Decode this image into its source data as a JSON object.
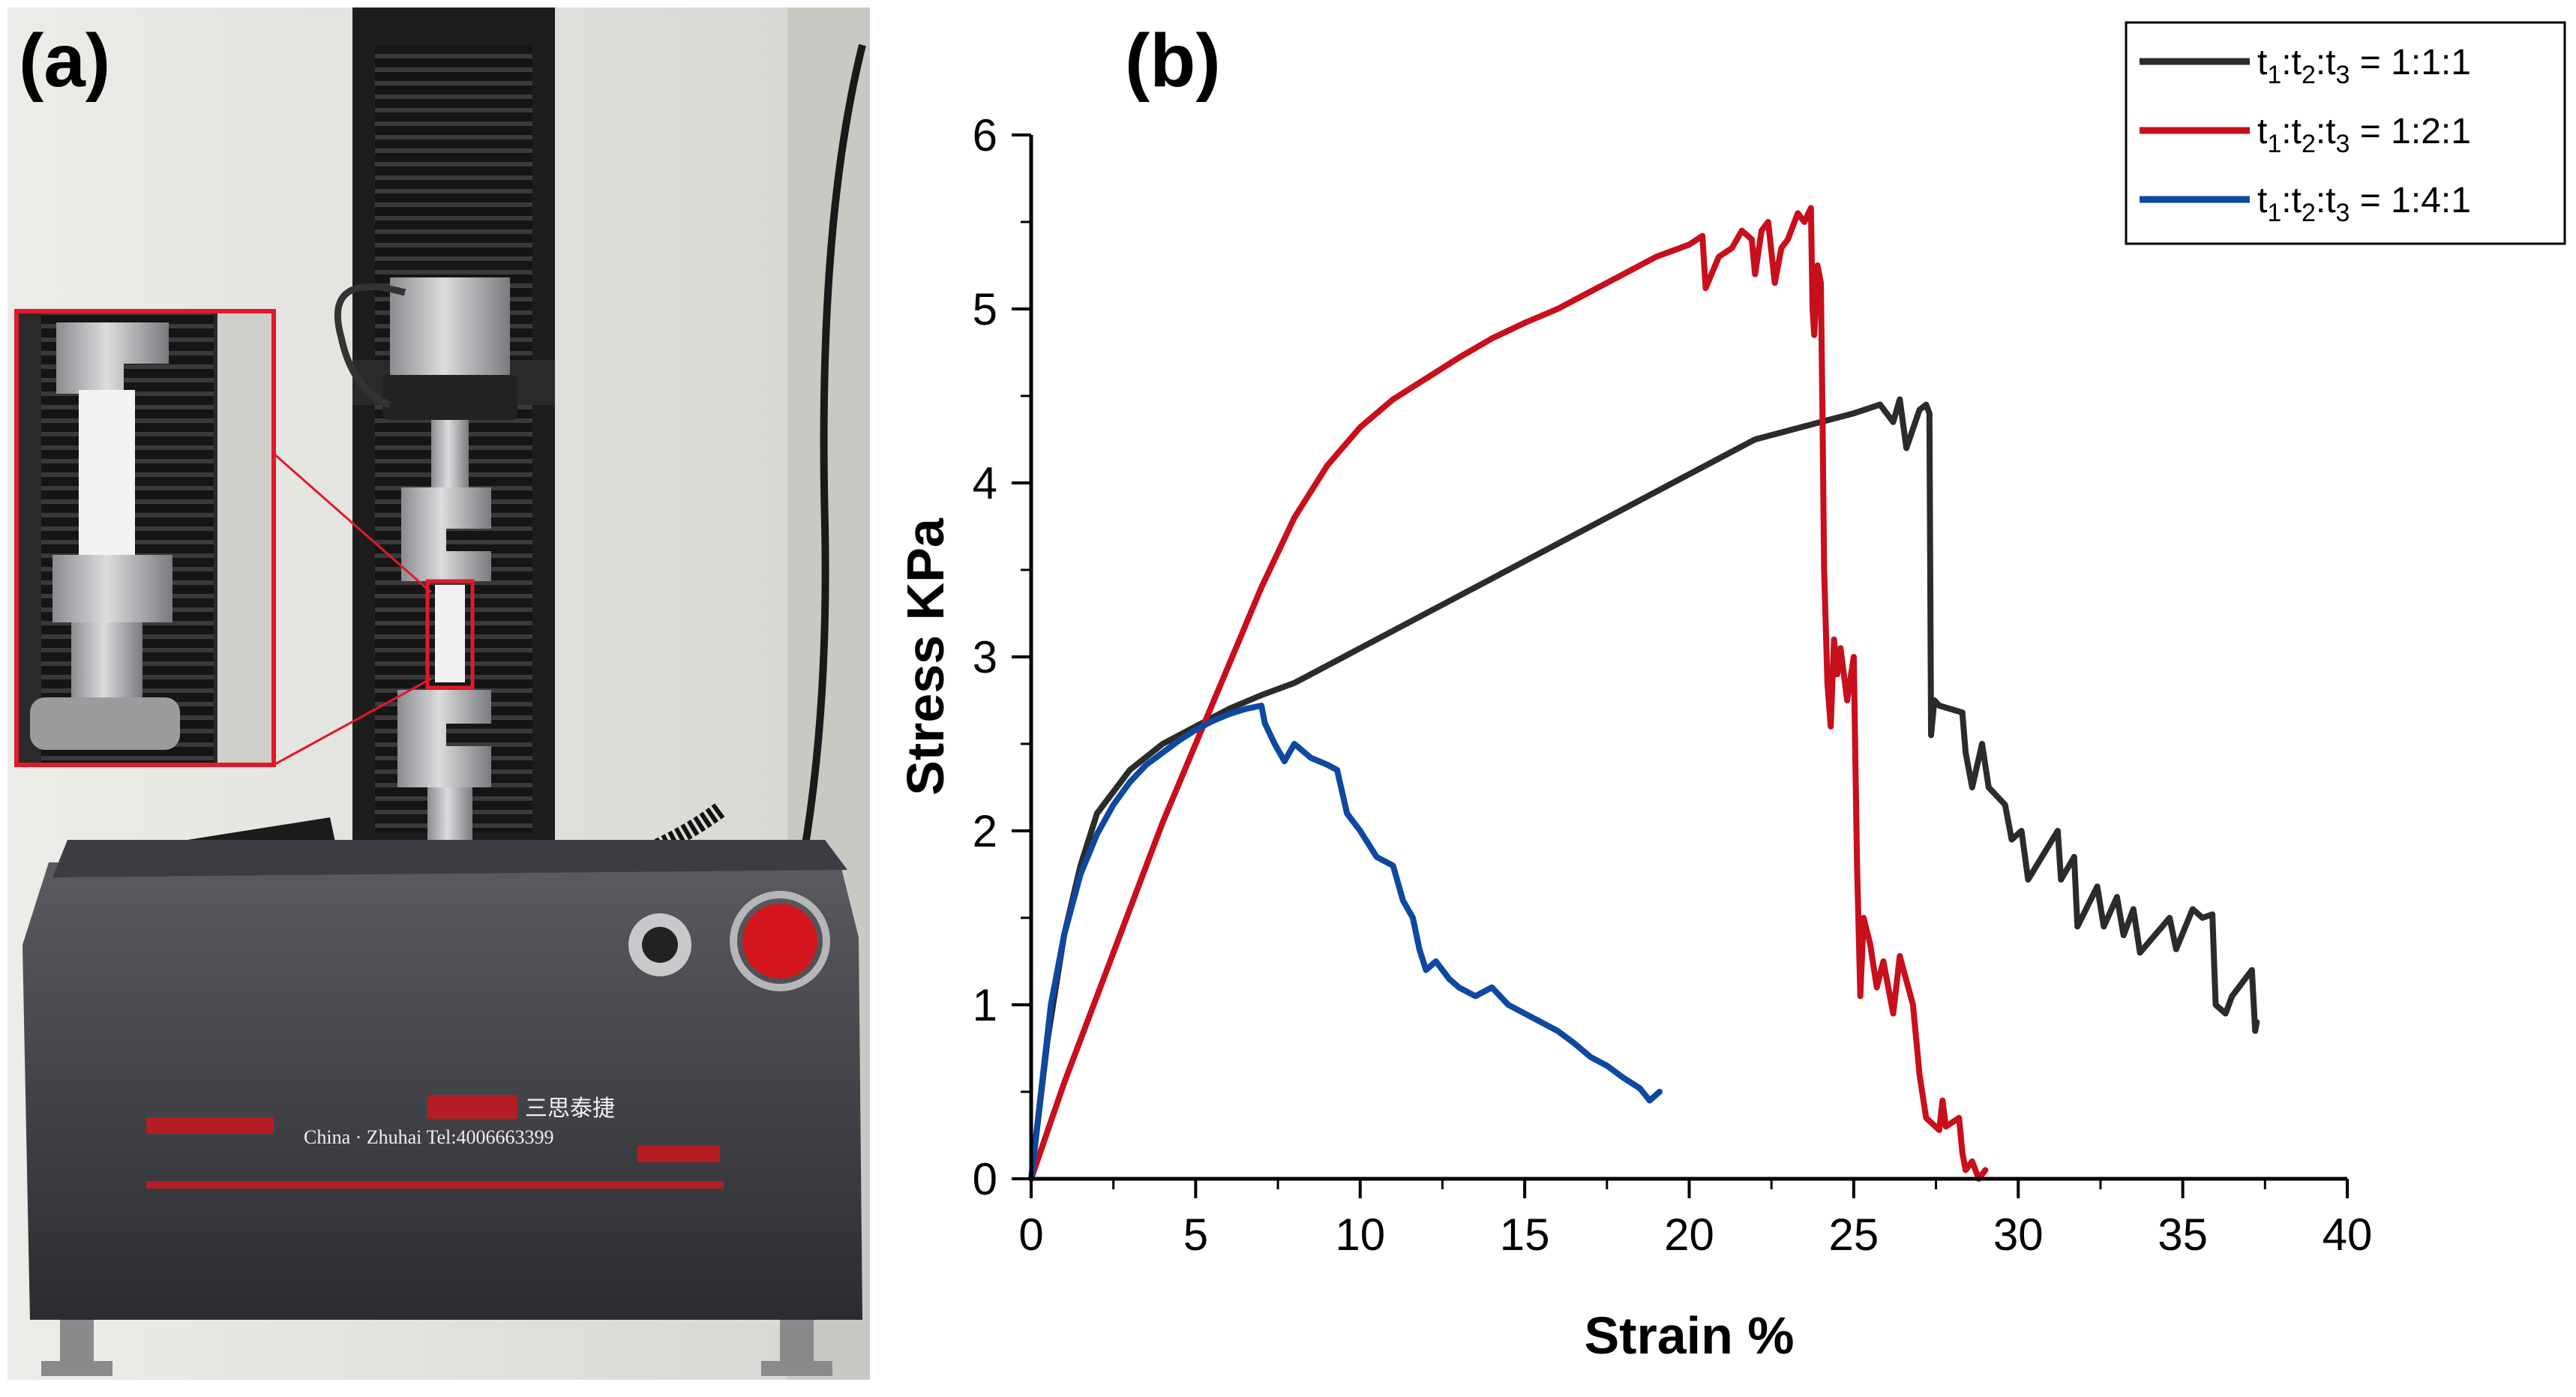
{
  "figure": {
    "panel_a_label": "(a)",
    "panel_b_label": "(b)",
    "machine": {
      "brand_text": "三思泰捷",
      "location_text": "China · Zhuhai Tel:4006663399"
    }
  },
  "colors": {
    "series_1": "#2b2b2b",
    "series_2": "#c80f1c",
    "series_3": "#0e48a0",
    "zoom_box": "#e0192b"
  },
  "chart_data": {
    "type": "line",
    "title": "",
    "xlabel": "Strain %",
    "ylabel": "Stress KPa",
    "xlim": [
      0,
      40
    ],
    "ylim": [
      0,
      6
    ],
    "xticks": [
      "0",
      "5",
      "10",
      "15",
      "20",
      "25",
      "30",
      "35",
      "40"
    ],
    "yticks": [
      "0",
      "1",
      "2",
      "3",
      "4",
      "5",
      "6"
    ],
    "legend_position": "top-right",
    "series": [
      {
        "name": "t1:t2:t3 = 1:1:1",
        "legend_parts": [
          "t",
          "1",
          ":t",
          "2",
          ":t",
          "3",
          " = 1:1:1"
        ],
        "color": "#2b2b2b",
        "x": [
          0,
          0.5,
          1,
          1.5,
          2,
          3,
          4,
          5,
          6,
          7,
          8,
          10,
          12,
          14,
          16,
          18,
          20,
          22,
          24,
          25,
          25.8,
          26.2,
          26.4,
          26.6,
          27,
          27.2,
          27.3,
          27.35,
          27.45,
          27.6,
          28.3,
          28.4,
          28.6,
          28.9,
          29.1,
          29.6,
          29.8,
          30.1,
          30.3,
          31.2,
          31.3,
          31.7,
          31.8,
          32.4,
          32.6,
          33.0,
          33.2,
          33.5,
          33.7,
          34.6,
          34.8,
          35.3,
          35.6,
          35.9,
          36.0,
          36.3,
          36.5,
          36.9,
          37.1,
          37.2,
          37.25
        ],
        "y": [
          0,
          0.8,
          1.4,
          1.8,
          2.1,
          2.35,
          2.5,
          2.6,
          2.7,
          2.78,
          2.85,
          3.05,
          3.25,
          3.45,
          3.65,
          3.85,
          4.05,
          4.25,
          4.35,
          4.4,
          4.45,
          4.35,
          4.48,
          4.2,
          4.42,
          4.45,
          4.4,
          2.55,
          2.75,
          2.72,
          2.68,
          2.45,
          2.25,
          2.5,
          2.25,
          2.15,
          1.95,
          2.0,
          1.72,
          2.0,
          1.72,
          1.85,
          1.45,
          1.68,
          1.45,
          1.62,
          1.4,
          1.55,
          1.3,
          1.5,
          1.32,
          1.55,
          1.5,
          1.52,
          1.0,
          0.95,
          1.05,
          1.15,
          1.2,
          0.85,
          0.9
        ]
      },
      {
        "name": "t1:t2:t3 = 1:2:1",
        "legend_parts": [
          "t",
          "1",
          ":t",
          "2",
          ":t",
          "3",
          " = 1:2:1"
        ],
        "color": "#c80f1c",
        "x": [
          0,
          1,
          2,
          3,
          4,
          5,
          6,
          7,
          8,
          9,
          10,
          11,
          12,
          13,
          14,
          15,
          16,
          17,
          18,
          19,
          20,
          20.4,
          20.5,
          20.9,
          21.3,
          21.6,
          21.9,
          22.0,
          22.2,
          22.4,
          22.6,
          22.8,
          23.0,
          23.3,
          23.5,
          23.7,
          23.75,
          23.8,
          23.9,
          24.0,
          24.05,
          24.1,
          24.2,
          24.3,
          24.4,
          24.5,
          24.6,
          24.8,
          25.0,
          25.1,
          25.2,
          25.3,
          25.5,
          25.7,
          25.9,
          26.2,
          26.4,
          26.8,
          27.0,
          27.2,
          27.6,
          27.7,
          27.8,
          28.2,
          28.3,
          28.4,
          28.6,
          28.8,
          29.0
        ],
        "y": [
          0,
          0.55,
          1.05,
          1.55,
          2.05,
          2.5,
          2.95,
          3.4,
          3.8,
          4.1,
          4.32,
          4.48,
          4.6,
          4.72,
          4.83,
          4.92,
          5.0,
          5.1,
          5.2,
          5.3,
          5.37,
          5.42,
          5.12,
          5.3,
          5.35,
          5.45,
          5.4,
          5.2,
          5.45,
          5.5,
          5.15,
          5.35,
          5.4,
          5.55,
          5.5,
          5.58,
          5.0,
          4.85,
          5.25,
          5.15,
          4.4,
          3.5,
          2.85,
          2.6,
          3.1,
          2.9,
          3.05,
          2.75,
          3.0,
          1.8,
          1.05,
          1.5,
          1.35,
          1.1,
          1.25,
          0.95,
          1.28,
          1.0,
          0.6,
          0.35,
          0.28,
          0.45,
          0.3,
          0.35,
          0.15,
          0.05,
          0.1,
          0.0,
          0.05
        ]
      },
      {
        "name": "t1:t2:t3 = 1:4:1",
        "legend_parts": [
          "t",
          "1",
          ":t",
          "2",
          ":t",
          "3",
          " = 1:4:1"
        ],
        "color": "#0e48a0",
        "x": [
          0,
          0.3,
          0.6,
          1,
          1.5,
          2,
          2.5,
          3,
          3.5,
          4,
          4.5,
          5,
          5.5,
          6,
          6.5,
          7,
          7.1,
          7.4,
          7.7,
          8,
          8.5,
          9,
          9.3,
          9.6,
          10,
          10.5,
          11,
          11.3,
          11.6,
          11.8,
          12,
          12.3,
          12.7,
          13,
          13.5,
          14,
          14.5,
          15,
          15.5,
          16,
          16.5,
          17,
          17.5,
          18,
          18.5,
          18.8,
          19.1
        ],
        "y": [
          0,
          0.5,
          1.0,
          1.4,
          1.75,
          1.98,
          2.15,
          2.28,
          2.38,
          2.45,
          2.52,
          2.58,
          2.63,
          2.67,
          2.7,
          2.72,
          2.62,
          2.5,
          2.4,
          2.5,
          2.42,
          2.38,
          2.35,
          2.1,
          2.0,
          1.85,
          1.8,
          1.6,
          1.5,
          1.32,
          1.2,
          1.25,
          1.15,
          1.1,
          1.05,
          1.1,
          1.0,
          0.95,
          0.9,
          0.85,
          0.78,
          0.7,
          0.65,
          0.58,
          0.52,
          0.45,
          0.5
        ]
      }
    ]
  }
}
